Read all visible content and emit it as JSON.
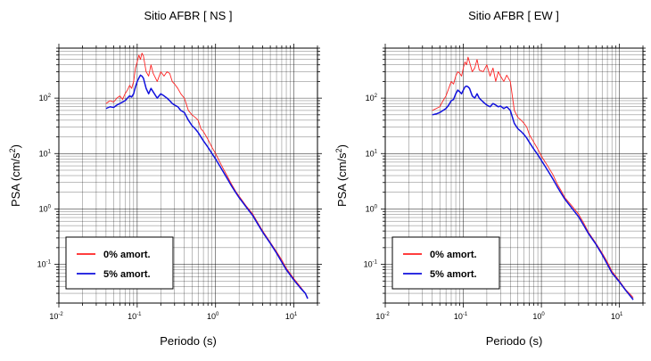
{
  "colors": {
    "series_0": "#ff2222",
    "series_5": "#1111dd"
  },
  "chart_data": [
    {
      "type": "line",
      "title": "Sitio AFBR [ NS ]",
      "xlabel": "Periodo (s)",
      "ylabel": "PSA (cm/s",
      "ylabel_exp": "2",
      "ylabel_end": ")",
      "xscale": "log",
      "yscale": "log",
      "xlim": [
        0.01,
        20
      ],
      "ylim": [
        0.02,
        800
      ],
      "grid": true,
      "legend_position": "bottom-left",
      "xticks": [
        {
          "base": "10",
          "exp": "-2"
        },
        {
          "base": "10",
          "exp": "-1"
        },
        {
          "base": "10",
          "exp": "0"
        },
        {
          "base": "10",
          "exp": "1"
        }
      ],
      "yticks": [
        {
          "base": "10",
          "exp": "-1"
        },
        {
          "base": "10",
          "exp": "0"
        },
        {
          "base": "10",
          "exp": "1"
        },
        {
          "base": "10",
          "exp": "2"
        }
      ],
      "series": [
        {
          "name": "0% amort.",
          "color": "#ff2222",
          "x": [
            0.04,
            0.045,
            0.05,
            0.055,
            0.06,
            0.065,
            0.07,
            0.075,
            0.08,
            0.085,
            0.09,
            0.095,
            0.1,
            0.105,
            0.11,
            0.115,
            0.12,
            0.13,
            0.14,
            0.15,
            0.16,
            0.18,
            0.2,
            0.22,
            0.24,
            0.26,
            0.28,
            0.3,
            0.33,
            0.36,
            0.4,
            0.45,
            0.5,
            0.55,
            0.6,
            0.65,
            0.7,
            0.8,
            0.9,
            1.0,
            1.2,
            1.4,
            1.6,
            1.8,
            2.0,
            2.5,
            3,
            3.5,
            4,
            5,
            6,
            7,
            8,
            10,
            12,
            14,
            15
          ],
          "y": [
            80,
            90,
            85,
            100,
            110,
            95,
            120,
            140,
            170,
            150,
            200,
            350,
            450,
            600,
            500,
            650,
            580,
            300,
            250,
            400,
            280,
            200,
            300,
            250,
            300,
            280,
            200,
            180,
            150,
            120,
            100,
            60,
            50,
            45,
            40,
            28,
            25,
            18,
            13,
            10,
            6,
            4,
            2.8,
            2.1,
            1.7,
            1.1,
            0.8,
            0.55,
            0.4,
            0.25,
            0.17,
            0.12,
            0.085,
            0.055,
            0.04,
            0.03,
            0.025
          ]
        },
        {
          "name": "5% amort.",
          "color": "#1111dd",
          "x": [
            0.04,
            0.045,
            0.05,
            0.055,
            0.06,
            0.065,
            0.07,
            0.075,
            0.08,
            0.085,
            0.09,
            0.095,
            0.1,
            0.105,
            0.11,
            0.115,
            0.12,
            0.13,
            0.14,
            0.15,
            0.16,
            0.18,
            0.2,
            0.22,
            0.24,
            0.26,
            0.28,
            0.3,
            0.33,
            0.36,
            0.4,
            0.45,
            0.5,
            0.55,
            0.6,
            0.65,
            0.7,
            0.8,
            0.9,
            1.0,
            1.2,
            1.4,
            1.6,
            1.8,
            2.0,
            2.5,
            3,
            3.5,
            4,
            5,
            6,
            7,
            8,
            10,
            12,
            14,
            15
          ],
          "y": [
            65,
            70,
            68,
            75,
            80,
            85,
            90,
            100,
            110,
            105,
            120,
            160,
            200,
            230,
            260,
            250,
            230,
            150,
            120,
            150,
            130,
            100,
            120,
            110,
            100,
            90,
            80,
            75,
            70,
            60,
            55,
            40,
            32,
            28,
            24,
            20,
            17,
            13,
            10,
            8,
            5.2,
            3.6,
            2.6,
            2.0,
            1.6,
            1.05,
            0.75,
            0.52,
            0.38,
            0.24,
            0.16,
            0.11,
            0.08,
            0.052,
            0.038,
            0.03,
            0.024
          ]
        }
      ]
    },
    {
      "type": "line",
      "title": "Sitio AFBR [ EW ]",
      "xlabel": "Periodo (s)",
      "ylabel": "PSA (cm/s",
      "ylabel_exp": "2",
      "ylabel_end": ")",
      "xscale": "log",
      "yscale": "log",
      "xlim": [
        0.01,
        20
      ],
      "ylim": [
        0.02,
        800
      ],
      "grid": true,
      "legend_position": "bottom-left",
      "xticks": [
        {
          "base": "10",
          "exp": "-2"
        },
        {
          "base": "10",
          "exp": "-1"
        },
        {
          "base": "10",
          "exp": "0"
        },
        {
          "base": "10",
          "exp": "1"
        }
      ],
      "yticks": [
        {
          "base": "10",
          "exp": "-1"
        },
        {
          "base": "10",
          "exp": "0"
        },
        {
          "base": "10",
          "exp": "1"
        },
        {
          "base": "10",
          "exp": "2"
        }
      ],
      "series": [
        {
          "name": "0% amort.",
          "color": "#ff2222",
          "x": [
            0.04,
            0.045,
            0.05,
            0.055,
            0.06,
            0.065,
            0.07,
            0.075,
            0.08,
            0.085,
            0.09,
            0.095,
            0.1,
            0.105,
            0.11,
            0.115,
            0.12,
            0.13,
            0.14,
            0.15,
            0.16,
            0.18,
            0.2,
            0.22,
            0.24,
            0.26,
            0.28,
            0.3,
            0.33,
            0.36,
            0.4,
            0.45,
            0.5,
            0.55,
            0.6,
            0.65,
            0.7,
            0.8,
            0.9,
            1.0,
            1.2,
            1.4,
            1.6,
            1.8,
            2.0,
            2.5,
            3,
            3.5,
            4,
            5,
            6,
            7,
            8,
            10,
            12,
            14,
            15
          ],
          "y": [
            60,
            65,
            70,
            90,
            110,
            150,
            200,
            180,
            250,
            300,
            280,
            250,
            350,
            450,
            400,
            550,
            450,
            300,
            350,
            500,
            320,
            300,
            400,
            250,
            350,
            200,
            300,
            250,
            200,
            260,
            200,
            60,
            45,
            40,
            35,
            30,
            22,
            16,
            12,
            9,
            6,
            4.2,
            2.8,
            2.1,
            1.6,
            1.1,
            0.8,
            0.55,
            0.38,
            0.24,
            0.16,
            0.11,
            0.075,
            0.05,
            0.035,
            0.028,
            0.025
          ]
        },
        {
          "name": "5% amort.",
          "color": "#1111dd",
          "x": [
            0.04,
            0.045,
            0.05,
            0.055,
            0.06,
            0.065,
            0.07,
            0.075,
            0.08,
            0.085,
            0.09,
            0.095,
            0.1,
            0.105,
            0.11,
            0.115,
            0.12,
            0.13,
            0.14,
            0.15,
            0.16,
            0.18,
            0.2,
            0.22,
            0.24,
            0.26,
            0.28,
            0.3,
            0.33,
            0.36,
            0.4,
            0.45,
            0.5,
            0.55,
            0.6,
            0.65,
            0.7,
            0.8,
            0.9,
            1.0,
            1.2,
            1.4,
            1.6,
            1.8,
            2.0,
            2.5,
            3,
            3.5,
            4,
            5,
            6,
            7,
            8,
            10,
            12,
            14,
            15
          ],
          "y": [
            50,
            52,
            55,
            60,
            65,
            75,
            90,
            95,
            120,
            140,
            130,
            120,
            140,
            160,
            165,
            160,
            150,
            110,
            100,
            120,
            100,
            85,
            75,
            70,
            80,
            75,
            70,
            72,
            65,
            70,
            60,
            35,
            28,
            25,
            22,
            19,
            16,
            12,
            9.5,
            7.5,
            5,
            3.5,
            2.5,
            1.9,
            1.5,
            1.0,
            0.72,
            0.5,
            0.36,
            0.23,
            0.15,
            0.1,
            0.07,
            0.048,
            0.034,
            0.026,
            0.023
          ]
        }
      ]
    }
  ]
}
